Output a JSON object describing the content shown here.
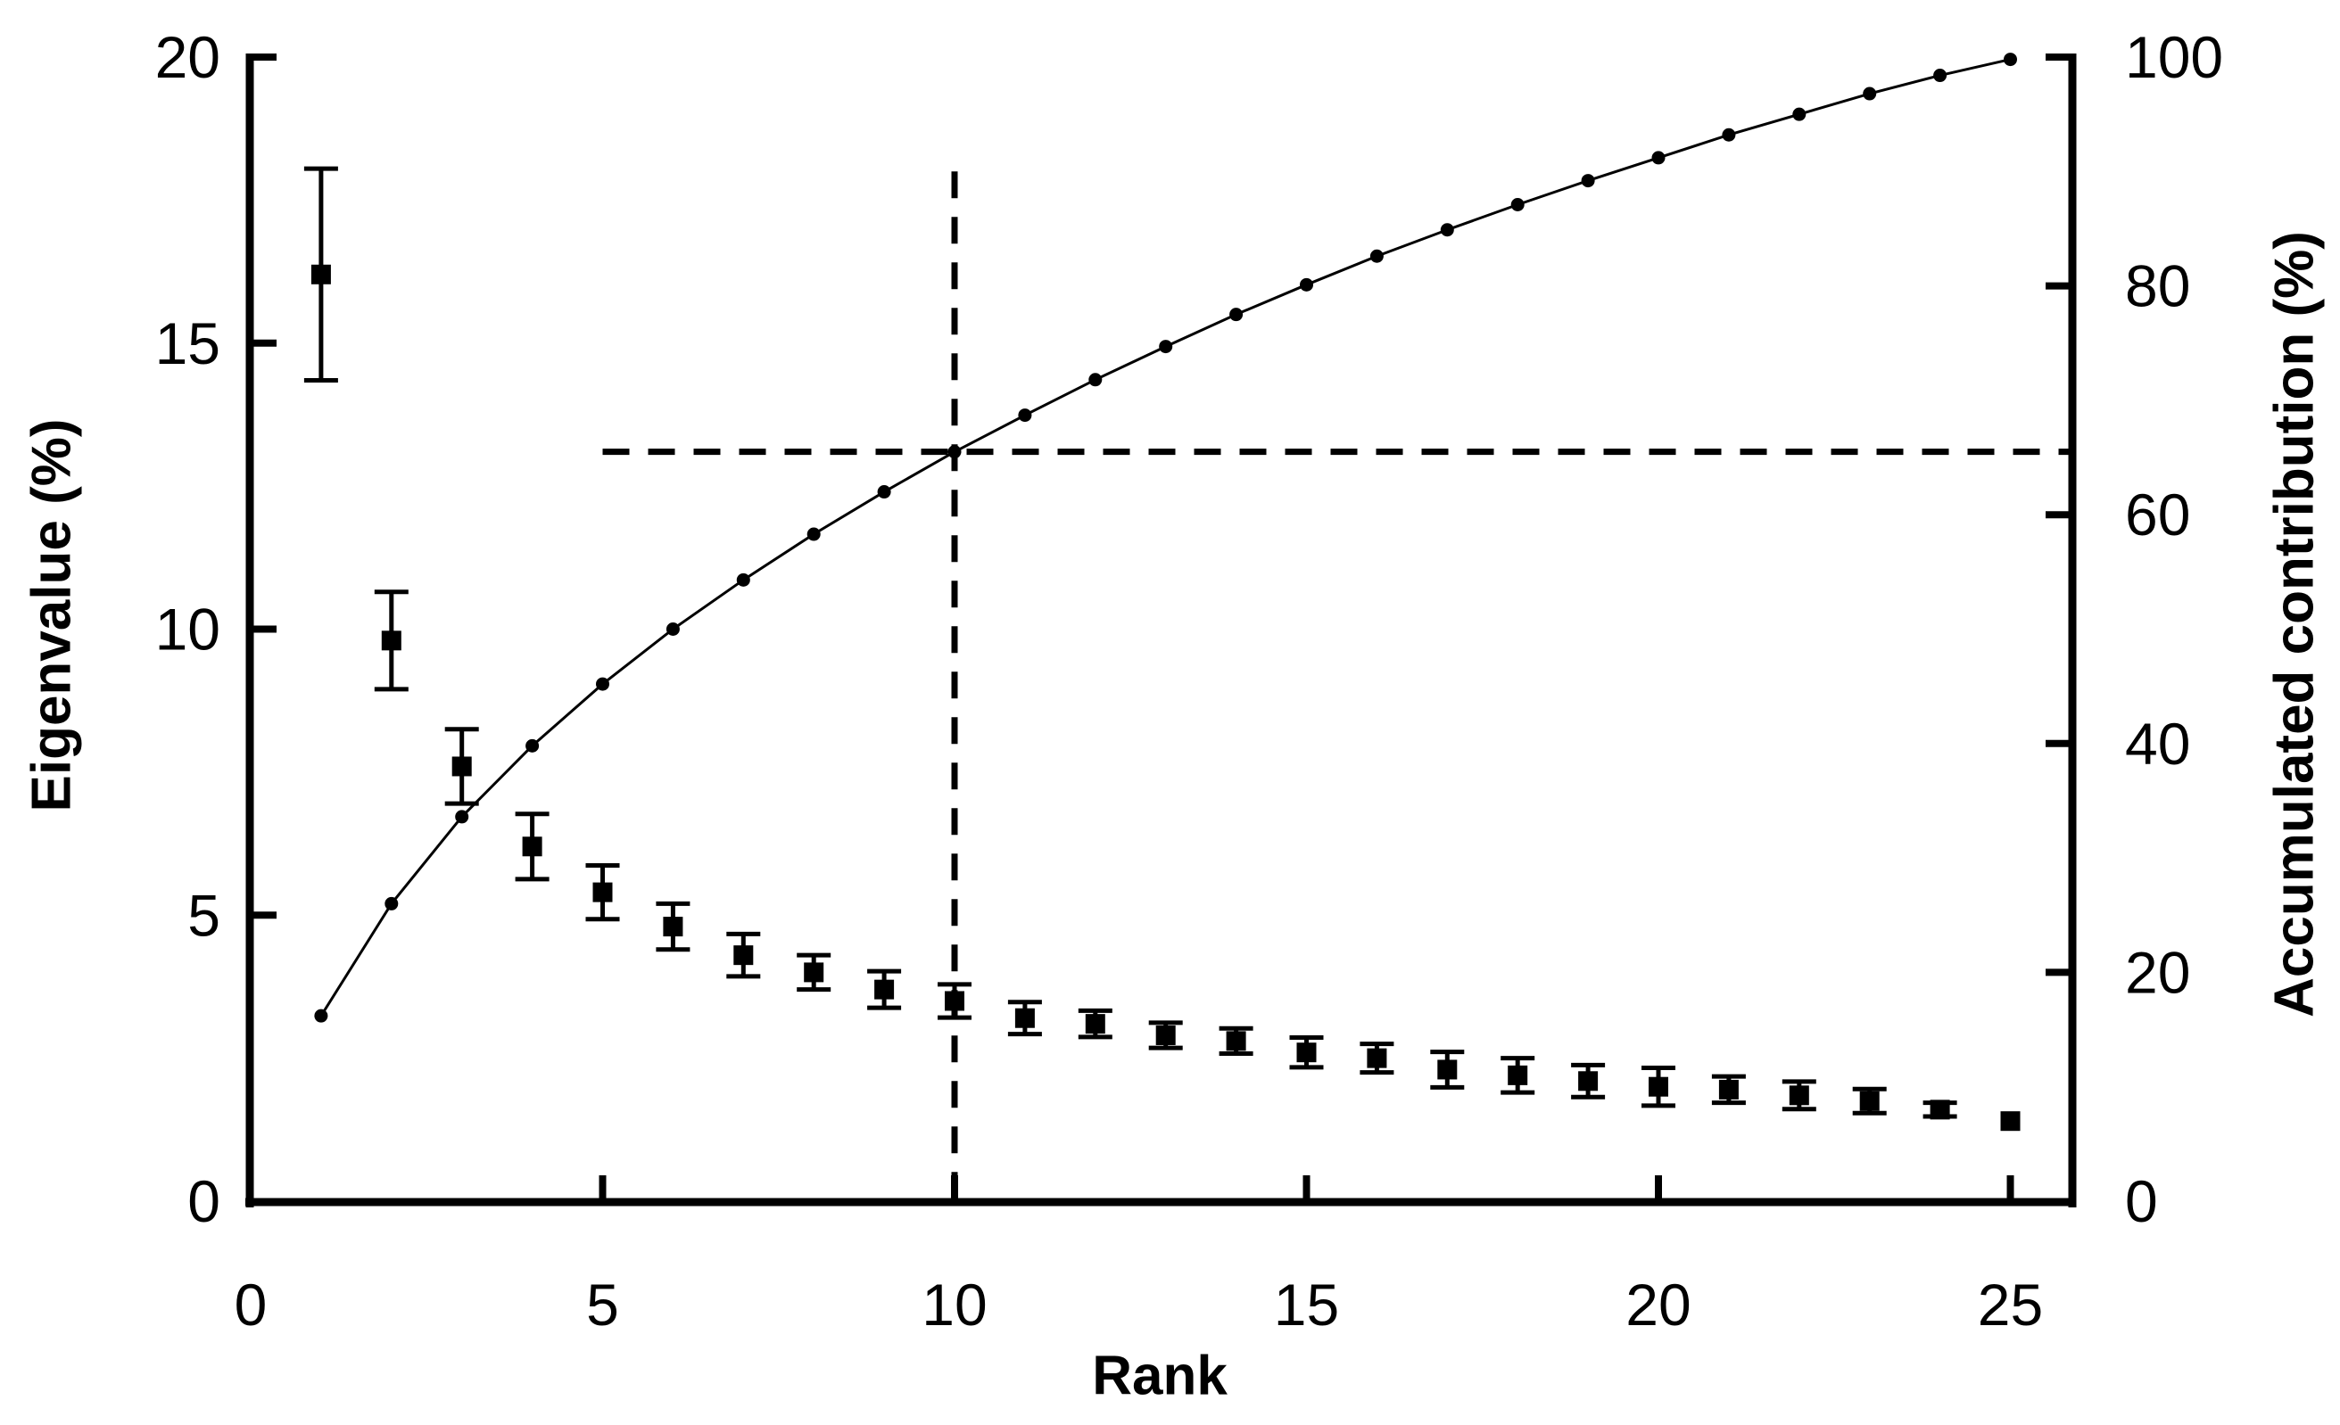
{
  "chart_data": {
    "type": "combo",
    "x": [
      1,
      2,
      3,
      4,
      5,
      6,
      7,
      8,
      9,
      10,
      11,
      12,
      13,
      14,
      15,
      16,
      17,
      18,
      19,
      20,
      21,
      22,
      23,
      24,
      25
    ],
    "series": [
      {
        "name": "Eigenvalue",
        "type": "scatter",
        "marker": "square",
        "axis": "left",
        "values": [
          16.2,
          9.8,
          7.6,
          6.2,
          5.4,
          4.8,
          4.3,
          4.0,
          3.7,
          3.5,
          3.2,
          3.1,
          2.9,
          2.8,
          2.6,
          2.5,
          2.3,
          2.2,
          2.1,
          2.0,
          1.95,
          1.85,
          1.75,
          1.6,
          1.4
        ],
        "error": [
          1.85,
          0.85,
          0.65,
          0.57,
          0.47,
          0.4,
          0.37,
          0.3,
          0.32,
          0.29,
          0.28,
          0.23,
          0.22,
          0.22,
          0.26,
          0.25,
          0.31,
          0.3,
          0.28,
          0.33,
          0.23,
          0.24,
          0.21,
          0.12,
          0.0
        ]
      },
      {
        "name": "Accumulated contribution",
        "type": "line",
        "marker": "circle",
        "axis": "right",
        "values": [
          16.2,
          26.0,
          33.6,
          39.8,
          45.2,
          50.0,
          54.3,
          58.3,
          62.0,
          65.5,
          68.7,
          71.8,
          74.7,
          77.5,
          80.1,
          82.6,
          84.9,
          87.1,
          89.2,
          91.2,
          93.2,
          95.0,
          96.8,
          98.4,
          99.8
        ]
      }
    ],
    "axes": {
      "x": {
        "label": "Rank",
        "ticks": [
          0,
          5,
          10,
          15,
          20,
          25
        ],
        "range": [
          0,
          25.9
        ]
      },
      "left": {
        "label": "Eigenvalue (%)",
        "ticks": [
          0,
          5,
          10,
          15,
          20
        ],
        "range": [
          0,
          20
        ]
      },
      "right": {
        "label": "Accumulated contribution (%)",
        "ticks": [
          0,
          20,
          40,
          60,
          80,
          100
        ],
        "range": [
          0,
          100
        ]
      }
    },
    "reference_lines": {
      "style": "dashed",
      "vertical_at_rank": 10,
      "vertical_top_pct": 90,
      "horizontal_at_contribution_pct": 65.5,
      "horizontal_left_start_rank": 5
    },
    "grid": false,
    "legend": "none",
    "colors": {
      "foreground": "#000000",
      "background": "#ffffff"
    }
  }
}
